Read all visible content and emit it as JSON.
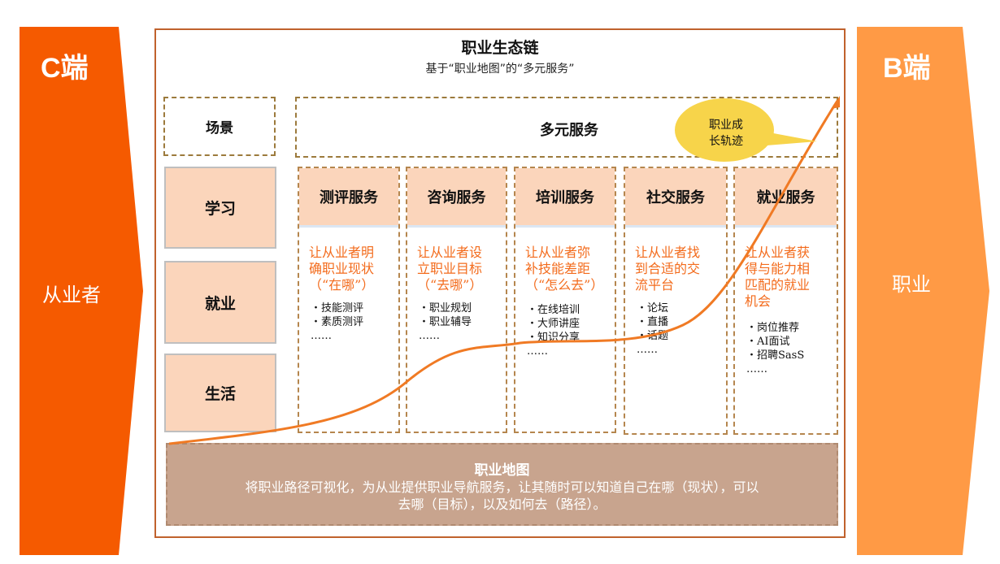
{
  "left_panel": {
    "title": "C端",
    "subtitle": "从业者"
  },
  "right_panel": {
    "title": "B端",
    "subtitle": "职业"
  },
  "header": {
    "title": "职业生态链",
    "subtitle": "基于“职业地图”的“多元服务”"
  },
  "scenes": {
    "label": "场景",
    "items": [
      "学习",
      "就业",
      "生活"
    ]
  },
  "services": {
    "label": "多元服务",
    "columns": [
      {
        "title": "测评服务",
        "desc_lines": [
          "让从业者明",
          "确职业现状",
          "（“在哪”）"
        ],
        "list": [
          "・技能测评",
          "・素质测评",
          "……"
        ]
      },
      {
        "title": "咨询服务",
        "desc_lines": [
          "让从业者设",
          "立职业目标",
          "（“去哪”）"
        ],
        "list": [
          "・职业规划",
          "・职业辅导",
          "……"
        ]
      },
      {
        "title": "培训服务",
        "desc_lines": [
          "让从业者弥",
          "补技能差距",
          "（“怎么去”）"
        ],
        "list": [
          "・在线培训",
          "・大师讲座",
          "・知识分享",
          "……"
        ]
      },
      {
        "title": "社交服务",
        "desc_lines": [
          "让从业者找",
          "到合适的交",
          "流平台"
        ],
        "list": [
          "・论坛",
          "・直播",
          "・话题",
          "……"
        ]
      },
      {
        "title": "就业服务",
        "desc_lines": [
          "让从业者获",
          "得与能力相",
          "匹配的就业",
          "机会"
        ],
        "list": [
          "・岗位推荐",
          "・AI面试",
          "・招聘SasS",
          "……"
        ]
      }
    ]
  },
  "callout": {
    "line1": "职业成",
    "line2": "长轨迹"
  },
  "career_map": {
    "title": "职业地图",
    "line1": "将职业路径可视化，为从业提供职业导航服务，让其随时可以知道自己在哪（现状），可以",
    "line2": "去哪（目标），以及如何去（路径）。"
  },
  "colors": {
    "c_side": "#f55a00",
    "b_side": "#ff9a45",
    "accent_text": "#f36b1c",
    "header_fill": "#fbd5bb",
    "map_fill": "#c8a48e",
    "bubble": "#f7d44a"
  }
}
